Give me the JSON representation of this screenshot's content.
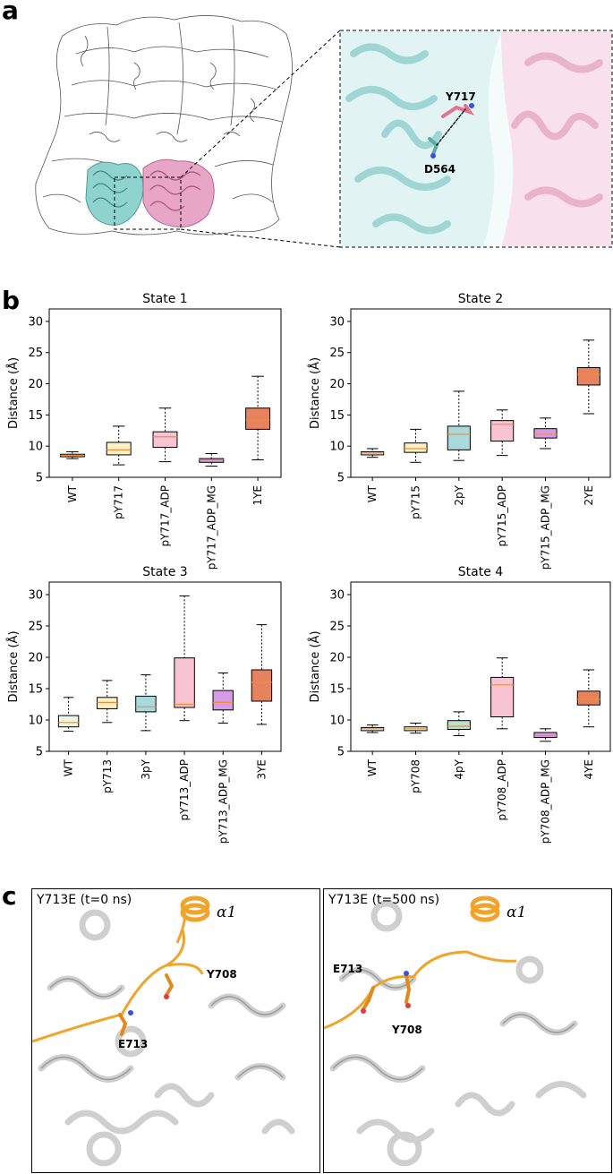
{
  "panel_letters": {
    "a": "a",
    "b": "b",
    "c": "c"
  },
  "panel_a": {
    "zoom_labels": {
      "residue1": "Y717",
      "residue2": "D564"
    },
    "colors": {
      "chainA": "#8fd3cf",
      "chainB": "#e8a6c7",
      "outline": "#555555"
    }
  },
  "chart_data": [
    {
      "type": "box",
      "title": "State 1",
      "ylabel": "Distance (Å)",
      "ylim": [
        5,
        32
      ],
      "yticks": [
        5,
        10,
        15,
        20,
        25,
        30
      ],
      "categories": [
        "WT",
        "pY717",
        "pY717_ADP",
        "pY717_ADP_MG",
        "1YE"
      ],
      "colors": [
        "#f0f0f0",
        "#fff1c4",
        "#f8c3d2",
        "#d79be6",
        "#e7825f"
      ],
      "boxes": [
        {
          "min": 8.0,
          "q1": 8.3,
          "median": 8.5,
          "q3": 8.7,
          "max": 9.1
        },
        {
          "min": 7.0,
          "q1": 8.6,
          "median": 9.4,
          "q3": 10.6,
          "max": 13.2
        },
        {
          "min": 7.5,
          "q1": 9.8,
          "median": 11.5,
          "q3": 12.3,
          "max": 16.1
        },
        {
          "min": 6.8,
          "q1": 7.4,
          "median": 7.8,
          "q3": 8.0,
          "max": 8.8
        },
        {
          "min": 7.8,
          "q1": 12.7,
          "median": 14.2,
          "q3": 16.1,
          "max": 21.2
        }
      ]
    },
    {
      "type": "box",
      "title": "State 2",
      "ylabel": "Distance (Å)",
      "ylim": [
        5,
        32
      ],
      "yticks": [
        5,
        10,
        15,
        20,
        25,
        30
      ],
      "categories": [
        "WT",
        "pY715",
        "2pY",
        "pY715_ADP",
        "pY715_ADP_MG",
        "2YE"
      ],
      "colors": [
        "#f0f0f0",
        "#fff1c4",
        "#a8dadb",
        "#f8c3d2",
        "#d79be6",
        "#e7825f"
      ],
      "boxes": [
        {
          "min": 8.2,
          "q1": 8.6,
          "median": 8.9,
          "q3": 9.1,
          "max": 9.6
        },
        {
          "min": 7.4,
          "q1": 9.0,
          "median": 9.6,
          "q3": 10.5,
          "max": 12.7
        },
        {
          "min": 7.7,
          "q1": 9.4,
          "median": 11.9,
          "q3": 13.2,
          "max": 18.8
        },
        {
          "min": 8.5,
          "q1": 10.8,
          "median": 13.5,
          "q3": 14.1,
          "max": 15.8
        },
        {
          "min": 9.6,
          "q1": 11.3,
          "median": 11.9,
          "q3": 12.8,
          "max": 14.5
        },
        {
          "min": 15.2,
          "q1": 19.8,
          "median": 21.5,
          "q3": 22.6,
          "max": 27.0
        }
      ]
    },
    {
      "type": "box",
      "title": "State 3",
      "ylabel": "Distance (Å)",
      "ylim": [
        5,
        32
      ],
      "yticks": [
        5,
        10,
        15,
        20,
        25,
        30
      ],
      "categories": [
        "WT",
        "pY713",
        "3pY",
        "pY713_ADP",
        "pY713_ADP_MG",
        "3YE"
      ],
      "colors": [
        "#eaf6e6",
        "#fff1c4",
        "#a8dadb",
        "#f8c3d2",
        "#d79be6",
        "#e7825f"
      ],
      "boxes": [
        {
          "min": 8.2,
          "q1": 8.9,
          "median": 9.6,
          "q3": 10.7,
          "max": 13.6
        },
        {
          "min": 9.6,
          "q1": 11.8,
          "median": 12.8,
          "q3": 13.6,
          "max": 16.3
        },
        {
          "min": 8.3,
          "q1": 11.3,
          "median": 12.1,
          "q3": 13.8,
          "max": 17.2
        },
        {
          "min": 9.9,
          "q1": 12.0,
          "median": 12.5,
          "q3": 19.9,
          "max": 29.8
        },
        {
          "min": 9.5,
          "q1": 11.6,
          "median": 12.8,
          "q3": 14.7,
          "max": 17.5
        },
        {
          "min": 9.3,
          "q1": 13.0,
          "median": 16.0,
          "q3": 18.0,
          "max": 25.2
        }
      ]
    },
    {
      "type": "box",
      "title": "State 4",
      "ylabel": "Distance (Å)",
      "ylim": [
        5,
        32
      ],
      "yticks": [
        5,
        10,
        15,
        20,
        25,
        30
      ],
      "categories": [
        "WT",
        "pY708",
        "4pY",
        "pY708_ADP",
        "pY708_ADP_MG",
        "4YE"
      ],
      "colors": [
        "#f0f0f0",
        "#fff1c4",
        "#b6e3cf",
        "#f8c3d2",
        "#d79be6",
        "#e7825f"
      ],
      "boxes": [
        {
          "min": 8.0,
          "q1": 8.3,
          "median": 8.6,
          "q3": 8.8,
          "max": 9.2
        },
        {
          "min": 7.9,
          "q1": 8.3,
          "median": 8.6,
          "q3": 8.9,
          "max": 9.5
        },
        {
          "min": 7.5,
          "q1": 8.5,
          "median": 9.0,
          "q3": 9.9,
          "max": 11.3
        },
        {
          "min": 8.6,
          "q1": 10.5,
          "median": 15.6,
          "q3": 16.8,
          "max": 19.9
        },
        {
          "min": 6.6,
          "q1": 7.2,
          "median": 7.5,
          "q3": 8.0,
          "max": 8.6
        },
        {
          "min": 8.9,
          "q1": 12.4,
          "median": 13.3,
          "q3": 14.6,
          "max": 18.0
        }
      ]
    }
  ],
  "panel_c": {
    "frames": [
      {
        "title": "Y713E (t=0 ns)",
        "helix_label": "α1",
        "labels": [
          "Y708",
          "E713"
        ]
      },
      {
        "title": "Y713E (t=500 ns)",
        "helix_label": "α1",
        "labels": [
          "E713",
          "Y708"
        ]
      }
    ],
    "colors": {
      "helix": "#f2a42a",
      "background": "#d9d9d9",
      "oxygen": "#e23b3b",
      "nitrogen": "#3b4fe2"
    }
  }
}
